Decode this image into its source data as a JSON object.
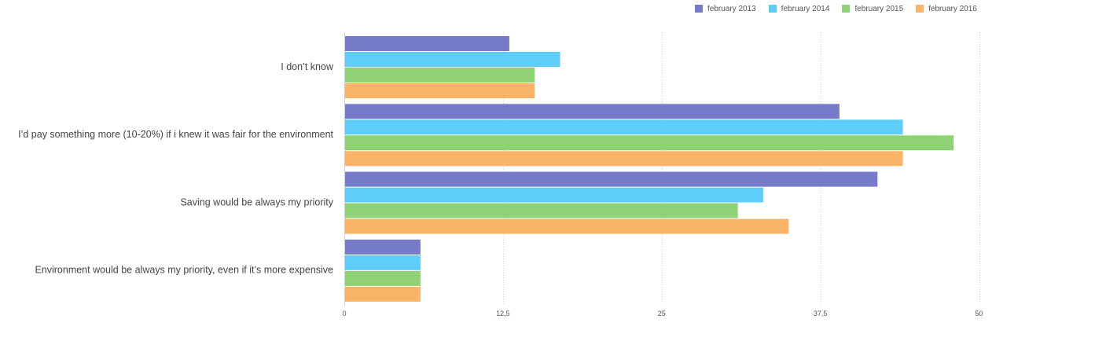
{
  "chart_data": {
    "type": "bar",
    "orientation": "horizontal",
    "categories": [
      "I don’t know",
      "I’d pay something more (10-20%) if i knew it was fair for the environment",
      "Saving would be always my priority",
      "Environment would be always my priority, even if it’s more expensive"
    ],
    "series": [
      {
        "name": "february 2013",
        "color": "#757bc8",
        "values": [
          13,
          39,
          42,
          6
        ]
      },
      {
        "name": "february 2014",
        "color": "#5fcdfa",
        "values": [
          17,
          44,
          33,
          6
        ]
      },
      {
        "name": "february 2015",
        "color": "#8fd275",
        "values": [
          15,
          48,
          31,
          6
        ]
      },
      {
        "name": "february 2016",
        "color": "#fab467",
        "values": [
          15,
          44,
          35,
          6
        ]
      }
    ],
    "xlim": [
      0,
      60
    ],
    "xticks": [
      0,
      12.5,
      25,
      37.5,
      50
    ],
    "xtick_labels": [
      "0",
      "12,5",
      "25",
      "37,5",
      "50"
    ],
    "grid": true,
    "legend_position": "top-right"
  }
}
